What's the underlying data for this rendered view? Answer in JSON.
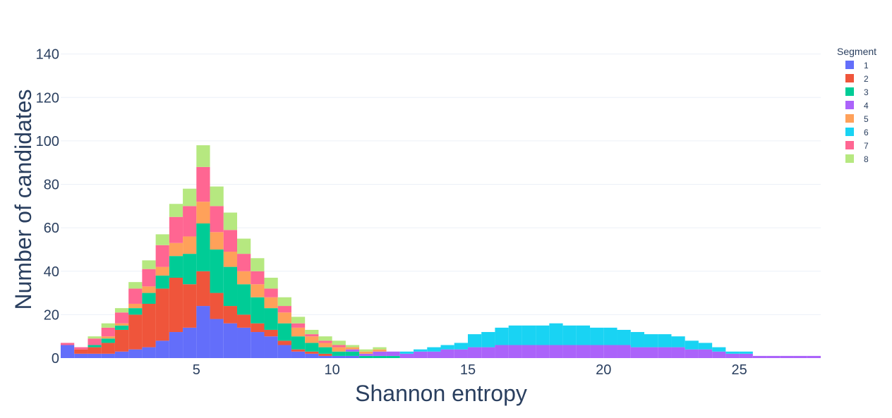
{
  "chart_data": {
    "type": "bar",
    "barmode": "stack",
    "xlabel": "Shannon entropy",
    "ylabel": "Number of candidates",
    "xlim": [
      0,
      28
    ],
    "ylim": [
      0,
      148
    ],
    "x_ticks": [
      5,
      10,
      15,
      20,
      25
    ],
    "y_ticks": [
      0,
      20,
      40,
      60,
      80,
      100,
      120,
      140
    ],
    "grid": "horizontal",
    "legend": {
      "title": "Segment",
      "placement": "top-right",
      "entries": [
        "1",
        "2",
        "3",
        "4",
        "5",
        "6",
        "7",
        "8"
      ]
    },
    "colors": {
      "1": "#636efa",
      "2": "#ef553b",
      "3": "#00cc96",
      "4": "#ab63fa",
      "5": "#ffa15a",
      "6": "#19d3f3",
      "7": "#ff6692",
      "8": "#b6e880"
    },
    "bin_width": 0.5,
    "x": [
      0.25,
      0.75,
      1.25,
      1.75,
      2.25,
      2.75,
      3.25,
      3.75,
      4.25,
      4.75,
      5.25,
      5.75,
      6.25,
      6.75,
      7.25,
      7.75,
      8.25,
      8.75,
      9.25,
      9.75,
      10.25,
      10.75,
      11.25,
      11.75,
      12.25,
      12.75,
      13.25,
      13.75,
      14.25,
      14.75,
      15.25,
      15.75,
      16.25,
      16.75,
      17.25,
      17.75,
      18.25,
      18.75,
      19.25,
      19.75,
      20.25,
      20.75,
      21.25,
      21.75,
      22.25,
      22.75,
      23.25,
      23.75,
      24.25,
      24.75,
      25.25,
      25.75,
      26.25,
      26.75,
      27.25,
      27.75
    ],
    "series": [
      {
        "name": "1",
        "values": [
          6,
          2,
          2,
          2,
          3,
          4,
          5,
          8,
          12,
          14,
          24,
          18,
          16,
          14,
          12,
          10,
          6,
          3,
          2,
          1,
          1,
          1,
          0,
          0,
          0,
          0,
          0,
          0,
          0,
          0,
          0,
          0,
          0,
          0,
          0,
          0,
          0,
          0,
          0,
          0,
          0,
          0,
          0,
          0,
          0,
          0,
          0,
          0,
          0,
          0,
          0,
          0,
          0,
          0,
          0,
          0
        ]
      },
      {
        "name": "2",
        "values": [
          0,
          2,
          3,
          5,
          10,
          16,
          20,
          24,
          25,
          20,
          16,
          12,
          8,
          6,
          4,
          3,
          2,
          1,
          1,
          1,
          0,
          0,
          0,
          0,
          0,
          0,
          0,
          0,
          0,
          0,
          0,
          0,
          0,
          0,
          0,
          0,
          0,
          0,
          0,
          0,
          0,
          0,
          0,
          0,
          0,
          0,
          0,
          0,
          0,
          0,
          0,
          0,
          0,
          0,
          0,
          0
        ]
      },
      {
        "name": "3",
        "values": [
          0,
          0,
          1,
          2,
          2,
          3,
          5,
          6,
          10,
          14,
          22,
          20,
          18,
          14,
          12,
          10,
          8,
          6,
          4,
          3,
          2,
          2,
          1,
          1,
          1,
          0,
          0,
          0,
          0,
          0,
          0,
          0,
          0,
          0,
          0,
          0,
          0,
          0,
          0,
          0,
          0,
          0,
          0,
          0,
          0,
          0,
          0,
          0,
          0,
          0,
          0,
          0,
          0,
          0,
          0,
          0
        ]
      },
      {
        "name": "4",
        "values": [
          0,
          0,
          0,
          0,
          0,
          0,
          0,
          0,
          0,
          0,
          0,
          0,
          0,
          0,
          0,
          0,
          0,
          0,
          0,
          0,
          0,
          1,
          1,
          2,
          2,
          2,
          3,
          3,
          4,
          4,
          5,
          5,
          6,
          6,
          6,
          6,
          6,
          6,
          6,
          6,
          6,
          6,
          5,
          5,
          5,
          5,
          4,
          4,
          3,
          2,
          2,
          1,
          1,
          1,
          1,
          1
        ]
      },
      {
        "name": "5",
        "values": [
          0,
          0,
          0,
          1,
          1,
          2,
          3,
          4,
          6,
          8,
          10,
          8,
          7,
          6,
          6,
          5,
          5,
          4,
          3,
          2,
          2,
          1,
          1,
          1,
          0,
          0,
          0,
          0,
          0,
          0,
          0,
          0,
          0,
          0,
          0,
          0,
          0,
          0,
          0,
          0,
          0,
          0,
          0,
          0,
          0,
          0,
          0,
          0,
          0,
          0,
          0,
          0,
          0,
          0,
          0,
          0
        ]
      },
      {
        "name": "6",
        "values": [
          0,
          0,
          0,
          0,
          0,
          0,
          0,
          0,
          0,
          0,
          0,
          0,
          0,
          0,
          0,
          0,
          0,
          0,
          0,
          0,
          0,
          0,
          0,
          0,
          0,
          1,
          1,
          2,
          2,
          3,
          6,
          7,
          8,
          9,
          9,
          9,
          10,
          9,
          9,
          8,
          8,
          7,
          7,
          6,
          6,
          5,
          4,
          3,
          2,
          1,
          1,
          0,
          0,
          0,
          0,
          0
        ]
      },
      {
        "name": "7",
        "values": [
          1,
          1,
          3,
          4,
          5,
          7,
          8,
          10,
          12,
          14,
          16,
          12,
          10,
          8,
          6,
          4,
          3,
          2,
          1,
          1,
          1,
          0,
          0,
          0,
          0,
          0,
          0,
          0,
          0,
          0,
          0,
          0,
          0,
          0,
          0,
          0,
          0,
          0,
          0,
          0,
          0,
          0,
          0,
          0,
          0,
          0,
          0,
          0,
          0,
          0,
          0,
          0,
          0,
          0,
          0,
          0
        ]
      },
      {
        "name": "8",
        "values": [
          0,
          0,
          1,
          2,
          2,
          3,
          4,
          5,
          6,
          8,
          10,
          9,
          8,
          7,
          6,
          5,
          4,
          3,
          2,
          2,
          2,
          1,
          1,
          1,
          0,
          0,
          0,
          0,
          0,
          0,
          0,
          0,
          0,
          0,
          0,
          0,
          0,
          0,
          0,
          0,
          0,
          0,
          0,
          0,
          0,
          0,
          0,
          0,
          0,
          0,
          0,
          0,
          0,
          0,
          0,
          0
        ]
      }
    ]
  }
}
